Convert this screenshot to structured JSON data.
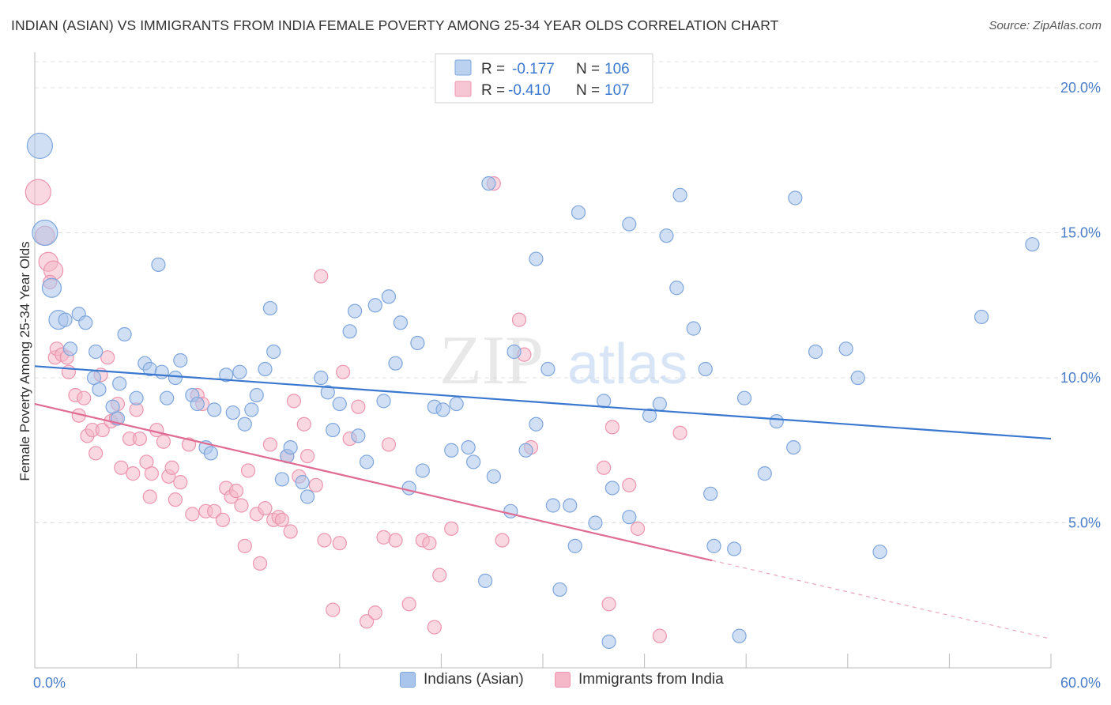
{
  "title": "INDIAN (ASIAN) VS IMMIGRANTS FROM INDIA FEMALE POVERTY AMONG 25-34 YEAR OLDS CORRELATION CHART",
  "source": "Source: ZipAtlas.com",
  "watermark": {
    "zip": "ZIP",
    "atlas": "atlas"
  },
  "colors": {
    "blue_fill": "#a9c5eb",
    "blue_stroke": "#7ea6dc",
    "blue_line": "#3a78d0",
    "pink_fill": "#f4b8c9",
    "pink_stroke": "#ec95ae",
    "pink_line": "#e06b93",
    "value_text": "#3a78d0",
    "grid": "#e0e0e0"
  },
  "legend": {
    "r_label": "R =",
    "n_label": "N =",
    "rows": [
      {
        "series": "blue",
        "r": "-0.177",
        "n": "106"
      },
      {
        "series": "pink",
        "r": "-0.410",
        "n": "107"
      }
    ]
  },
  "bottom_legend": [
    {
      "series": "blue",
      "label": "Indians (Asian)"
    },
    {
      "series": "pink",
      "label": "Immigrants from India"
    }
  ],
  "chart_data": {
    "type": "scatter",
    "title": "INDIAN (ASIAN) VS IMMIGRANTS FROM INDIA FEMALE POVERTY AMONG 25-34 YEAR OLDS CORRELATION CHART",
    "xlabel": "",
    "ylabel": "Female Poverty Among 25-34 Year Olds",
    "xlim": [
      0,
      60
    ],
    "ylim": [
      0,
      20.9
    ],
    "x_tick_labels": [
      "0.0%",
      "60.0%"
    ],
    "y_ticks": [
      5,
      10,
      15,
      20
    ],
    "y_tick_labels": [
      "5.0%",
      "10.0%",
      "15.0%",
      "20.0%"
    ],
    "grid": true,
    "series": [
      {
        "name": "Indians (Asian)",
        "color": "blue",
        "points": [
          [
            0.3,
            18.0,
            3
          ],
          [
            0.6,
            15.0,
            3
          ],
          [
            1.0,
            13.1,
            2
          ],
          [
            1.4,
            12.0,
            2
          ],
          [
            1.8,
            12.0,
            1
          ],
          [
            2.1,
            11.0,
            1
          ],
          [
            2.6,
            12.2,
            1
          ],
          [
            3.0,
            11.9,
            1
          ],
          [
            3.6,
            10.9,
            1
          ],
          [
            3.5,
            10.0,
            1
          ],
          [
            3.8,
            9.6,
            1
          ],
          [
            4.6,
            9.0,
            1
          ],
          [
            4.9,
            8.6,
            1
          ],
          [
            5.0,
            9.8,
            1
          ],
          [
            5.3,
            11.5,
            1
          ],
          [
            6.0,
            9.3,
            1
          ],
          [
            6.5,
            10.5,
            1
          ],
          [
            6.8,
            10.3,
            1
          ],
          [
            7.5,
            10.2,
            1
          ],
          [
            7.8,
            9.3,
            1
          ],
          [
            7.3,
            13.9,
            1
          ],
          [
            8.3,
            10.0,
            1
          ],
          [
            8.6,
            10.6,
            1
          ],
          [
            9.3,
            9.4,
            1
          ],
          [
            9.6,
            9.1,
            1
          ],
          [
            10.1,
            7.6,
            1
          ],
          [
            10.4,
            7.4,
            1
          ],
          [
            10.6,
            8.9,
            1
          ],
          [
            11.3,
            10.1,
            1
          ],
          [
            11.7,
            8.8,
            1
          ],
          [
            12.1,
            10.2,
            1
          ],
          [
            12.4,
            8.4,
            1
          ],
          [
            12.8,
            8.9,
            1
          ],
          [
            13.1,
            9.4,
            1
          ],
          [
            13.6,
            10.3,
            1
          ],
          [
            13.9,
            12.4,
            1
          ],
          [
            14.1,
            10.9,
            1
          ],
          [
            14.6,
            6.5,
            1
          ],
          [
            14.9,
            7.3,
            1
          ],
          [
            15.1,
            7.6,
            1
          ],
          [
            15.8,
            6.4,
            1
          ],
          [
            16.1,
            5.9,
            1
          ],
          [
            16.9,
            10.0,
            1
          ],
          [
            17.3,
            9.5,
            1
          ],
          [
            17.6,
            8.2,
            1
          ],
          [
            18.0,
            9.1,
            1
          ],
          [
            18.6,
            11.6,
            1
          ],
          [
            18.9,
            12.3,
            1
          ],
          [
            19.1,
            8.0,
            1
          ],
          [
            19.6,
            7.1,
            1
          ],
          [
            20.1,
            12.5,
            1
          ],
          [
            20.6,
            9.2,
            1
          ],
          [
            20.9,
            12.8,
            1
          ],
          [
            21.3,
            10.5,
            1
          ],
          [
            21.6,
            11.9,
            1
          ],
          [
            22.1,
            6.2,
            1
          ],
          [
            22.6,
            11.2,
            1
          ],
          [
            22.9,
            6.8,
            1
          ],
          [
            23.6,
            9.0,
            1
          ],
          [
            24.1,
            8.9,
            1
          ],
          [
            24.6,
            7.5,
            1
          ],
          [
            24.9,
            9.1,
            1
          ],
          [
            25.6,
            7.6,
            1
          ],
          [
            25.9,
            7.1,
            1
          ],
          [
            26.6,
            3.0,
            1
          ],
          [
            26.8,
            16.7,
            1
          ],
          [
            27.1,
            6.6,
            1
          ],
          [
            28.1,
            5.4,
            1
          ],
          [
            28.3,
            10.9,
            1
          ],
          [
            29.0,
            7.5,
            1
          ],
          [
            29.6,
            14.1,
            1
          ],
          [
            29.6,
            8.4,
            1
          ],
          [
            30.3,
            10.3,
            1
          ],
          [
            30.6,
            5.6,
            1
          ],
          [
            31.0,
            2.7,
            1
          ],
          [
            31.6,
            5.6,
            1
          ],
          [
            31.9,
            4.2,
            1
          ],
          [
            32.1,
            15.7,
            1
          ],
          [
            33.1,
            5.0,
            1
          ],
          [
            33.6,
            9.2,
            1
          ],
          [
            33.9,
            0.9,
            1
          ],
          [
            34.1,
            6.2,
            1
          ],
          [
            35.1,
            15.3,
            1
          ],
          [
            35.1,
            5.2,
            1
          ],
          [
            36.3,
            8.7,
            1
          ],
          [
            36.9,
            9.1,
            1
          ],
          [
            37.3,
            14.9,
            1
          ],
          [
            37.9,
            13.1,
            1
          ],
          [
            38.1,
            16.3,
            1
          ],
          [
            38.9,
            11.7,
            1
          ],
          [
            39.6,
            10.3,
            1
          ],
          [
            39.9,
            6.0,
            1
          ],
          [
            40.1,
            4.2,
            1
          ],
          [
            41.3,
            4.1,
            1
          ],
          [
            41.6,
            1.1,
            1
          ],
          [
            41.9,
            9.3,
            1
          ],
          [
            43.1,
            6.7,
            1
          ],
          [
            43.8,
            8.5,
            1
          ],
          [
            44.8,
            7.6,
            1
          ],
          [
            44.9,
            16.2,
            1
          ],
          [
            46.1,
            10.9,
            1
          ],
          [
            47.9,
            11.0,
            1
          ],
          [
            48.6,
            10.0,
            1
          ],
          [
            49.9,
            4.0,
            1
          ],
          [
            55.9,
            12.1,
            1
          ],
          [
            58.9,
            14.6,
            1
          ]
        ],
        "trend": {
          "x": [
            0,
            60
          ],
          "y": [
            10.4,
            7.9
          ],
          "style": "solid"
        }
      },
      {
        "name": "Immigrants from India",
        "color": "pink",
        "points": [
          [
            0.2,
            16.4,
            3
          ],
          [
            0.6,
            14.9,
            2
          ],
          [
            0.8,
            14.0,
            2
          ],
          [
            1.1,
            13.7,
            2
          ],
          [
            0.9,
            13.3,
            1
          ],
          [
            1.2,
            10.7,
            1
          ],
          [
            1.3,
            11.0,
            1
          ],
          [
            1.6,
            10.8,
            1
          ],
          [
            1.9,
            10.7,
            1
          ],
          [
            2.0,
            10.2,
            1
          ],
          [
            2.4,
            9.4,
            1
          ],
          [
            2.6,
            8.7,
            1
          ],
          [
            2.9,
            9.3,
            1
          ],
          [
            3.1,
            8.0,
            1
          ],
          [
            3.4,
            8.2,
            1
          ],
          [
            3.6,
            7.4,
            1
          ],
          [
            3.9,
            10.1,
            1
          ],
          [
            4.0,
            8.2,
            1
          ],
          [
            4.3,
            10.7,
            1
          ],
          [
            4.5,
            8.5,
            1
          ],
          [
            4.8,
            8.6,
            1
          ],
          [
            4.9,
            9.1,
            1
          ],
          [
            5.1,
            6.9,
            1
          ],
          [
            5.6,
            7.9,
            1
          ],
          [
            5.8,
            6.7,
            1
          ],
          [
            6.0,
            8.9,
            1
          ],
          [
            6.2,
            7.9,
            1
          ],
          [
            6.6,
            7.1,
            1
          ],
          [
            6.8,
            5.9,
            1
          ],
          [
            6.9,
            6.7,
            1
          ],
          [
            7.2,
            8.2,
            1
          ],
          [
            7.6,
            7.8,
            1
          ],
          [
            7.9,
            6.6,
            1
          ],
          [
            8.1,
            6.9,
            1
          ],
          [
            8.3,
            5.8,
            1
          ],
          [
            8.6,
            6.4,
            1
          ],
          [
            9.1,
            7.7,
            1
          ],
          [
            9.3,
            5.3,
            1
          ],
          [
            9.6,
            9.4,
            1
          ],
          [
            9.9,
            9.1,
            1
          ],
          [
            10.1,
            5.4,
            1
          ],
          [
            10.6,
            5.4,
            1
          ],
          [
            11.1,
            5.1,
            1
          ],
          [
            11.3,
            6.2,
            1
          ],
          [
            11.6,
            5.9,
            1
          ],
          [
            11.9,
            6.1,
            1
          ],
          [
            12.2,
            5.6,
            1
          ],
          [
            12.4,
            4.2,
            1
          ],
          [
            12.6,
            6.8,
            1
          ],
          [
            13.1,
            5.3,
            1
          ],
          [
            13.3,
            3.6,
            1
          ],
          [
            13.6,
            5.5,
            1
          ],
          [
            13.9,
            7.7,
            1
          ],
          [
            14.1,
            5.1,
            1
          ],
          [
            14.4,
            5.2,
            1
          ],
          [
            14.6,
            5.1,
            1
          ],
          [
            14.9,
            7.3,
            1
          ],
          [
            15.1,
            4.7,
            1
          ],
          [
            15.3,
            9.2,
            1
          ],
          [
            15.6,
            6.6,
            1
          ],
          [
            15.9,
            8.4,
            1
          ],
          [
            16.1,
            7.3,
            1
          ],
          [
            16.6,
            6.3,
            1
          ],
          [
            16.9,
            13.5,
            1
          ],
          [
            17.1,
            4.4,
            1
          ],
          [
            17.6,
            2.0,
            1
          ],
          [
            18.0,
            4.3,
            1
          ],
          [
            18.2,
            10.2,
            1
          ],
          [
            18.6,
            7.9,
            1
          ],
          [
            19.1,
            9.0,
            1
          ],
          [
            19.6,
            1.6,
            1
          ],
          [
            20.1,
            1.9,
            1
          ],
          [
            20.6,
            4.5,
            1
          ],
          [
            20.9,
            7.7,
            1
          ],
          [
            21.3,
            4.4,
            1
          ],
          [
            22.1,
            2.2,
            1
          ],
          [
            22.9,
            4.4,
            1
          ],
          [
            23.3,
            4.3,
            1
          ],
          [
            23.6,
            1.4,
            1
          ],
          [
            23.9,
            3.2,
            1
          ],
          [
            24.6,
            4.8,
            1
          ],
          [
            27.1,
            16.7,
            1
          ],
          [
            27.6,
            4.4,
            1
          ],
          [
            28.6,
            12.0,
            1
          ],
          [
            28.9,
            10.8,
            1
          ],
          [
            29.3,
            7.6,
            1
          ],
          [
            33.6,
            6.9,
            1
          ],
          [
            33.9,
            2.2,
            1
          ],
          [
            34.1,
            8.3,
            1
          ],
          [
            35.1,
            6.3,
            1
          ],
          [
            35.6,
            4.8,
            1
          ],
          [
            36.9,
            1.1,
            1
          ],
          [
            38.1,
            8.1,
            1
          ]
        ],
        "trend": {
          "x": [
            0,
            40
          ],
          "y": [
            9.1,
            3.7
          ],
          "style": "solid",
          "dashed_extension": {
            "x": [
              40,
              60
            ],
            "y": [
              3.7,
              1.0
            ]
          }
        }
      }
    ]
  }
}
